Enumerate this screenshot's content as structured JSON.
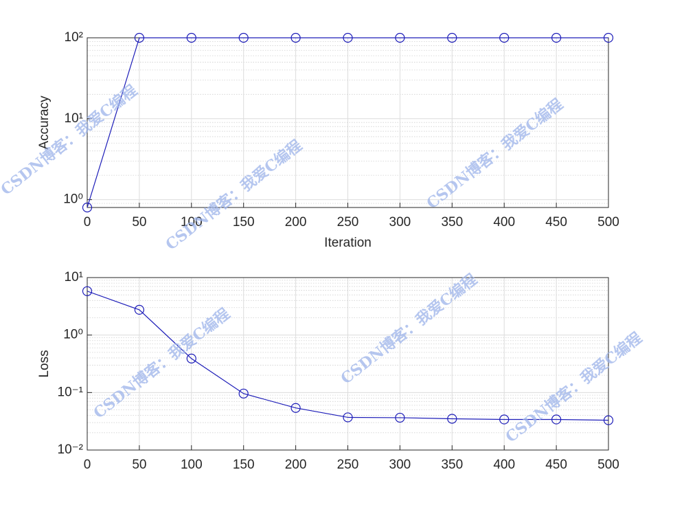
{
  "chart_data": [
    {
      "type": "line",
      "ylabel": "Accuracy",
      "xlabel": "Iteration",
      "x": [
        0,
        50,
        100,
        150,
        200,
        250,
        300,
        350,
        400,
        450,
        500
      ],
      "series": [
        {
          "color": "#1c1cb8",
          "marker": "circle",
          "values": [
            0.8,
            100,
            100,
            100,
            100,
            100,
            100,
            100,
            100,
            100,
            100
          ]
        }
      ],
      "xlim": [
        0,
        500
      ],
      "xticks": [
        0,
        50,
        100,
        150,
        200,
        250,
        300,
        350,
        400,
        450,
        500
      ],
      "ylim": [
        0.8,
        100
      ],
      "yticks": [
        {
          "value": 1,
          "label": "10⁰"
        },
        {
          "value": 10,
          "label": "10¹"
        },
        {
          "value": 100,
          "label": "10²"
        }
      ],
      "yscale": "log",
      "grid": true,
      "minor_grid": true
    },
    {
      "type": "line",
      "ylabel": "Loss",
      "x": [
        0,
        50,
        100,
        150,
        200,
        250,
        300,
        350,
        400,
        450,
        500
      ],
      "series": [
        {
          "color": "#1c1cb8",
          "marker": "circle",
          "values": [
            5.8,
            2.75,
            0.39,
            0.096,
            0.054,
            0.037,
            0.0365,
            0.035,
            0.034,
            0.034,
            0.033
          ]
        }
      ],
      "xlim": [
        0,
        500
      ],
      "xticks": [
        0,
        50,
        100,
        150,
        200,
        250,
        300,
        350,
        400,
        450,
        500
      ],
      "ylim": [
        0.01,
        10
      ],
      "yticks": [
        {
          "value": 0.01,
          "label": "10⁻²"
        },
        {
          "value": 0.1,
          "label": "10⁻¹"
        },
        {
          "value": 1,
          "label": "10⁰"
        },
        {
          "value": 10,
          "label": "10¹"
        }
      ],
      "yscale": "log",
      "grid": true,
      "minor_grid": true
    }
  ],
  "watermark": "CSDN博客：我爱C编程"
}
